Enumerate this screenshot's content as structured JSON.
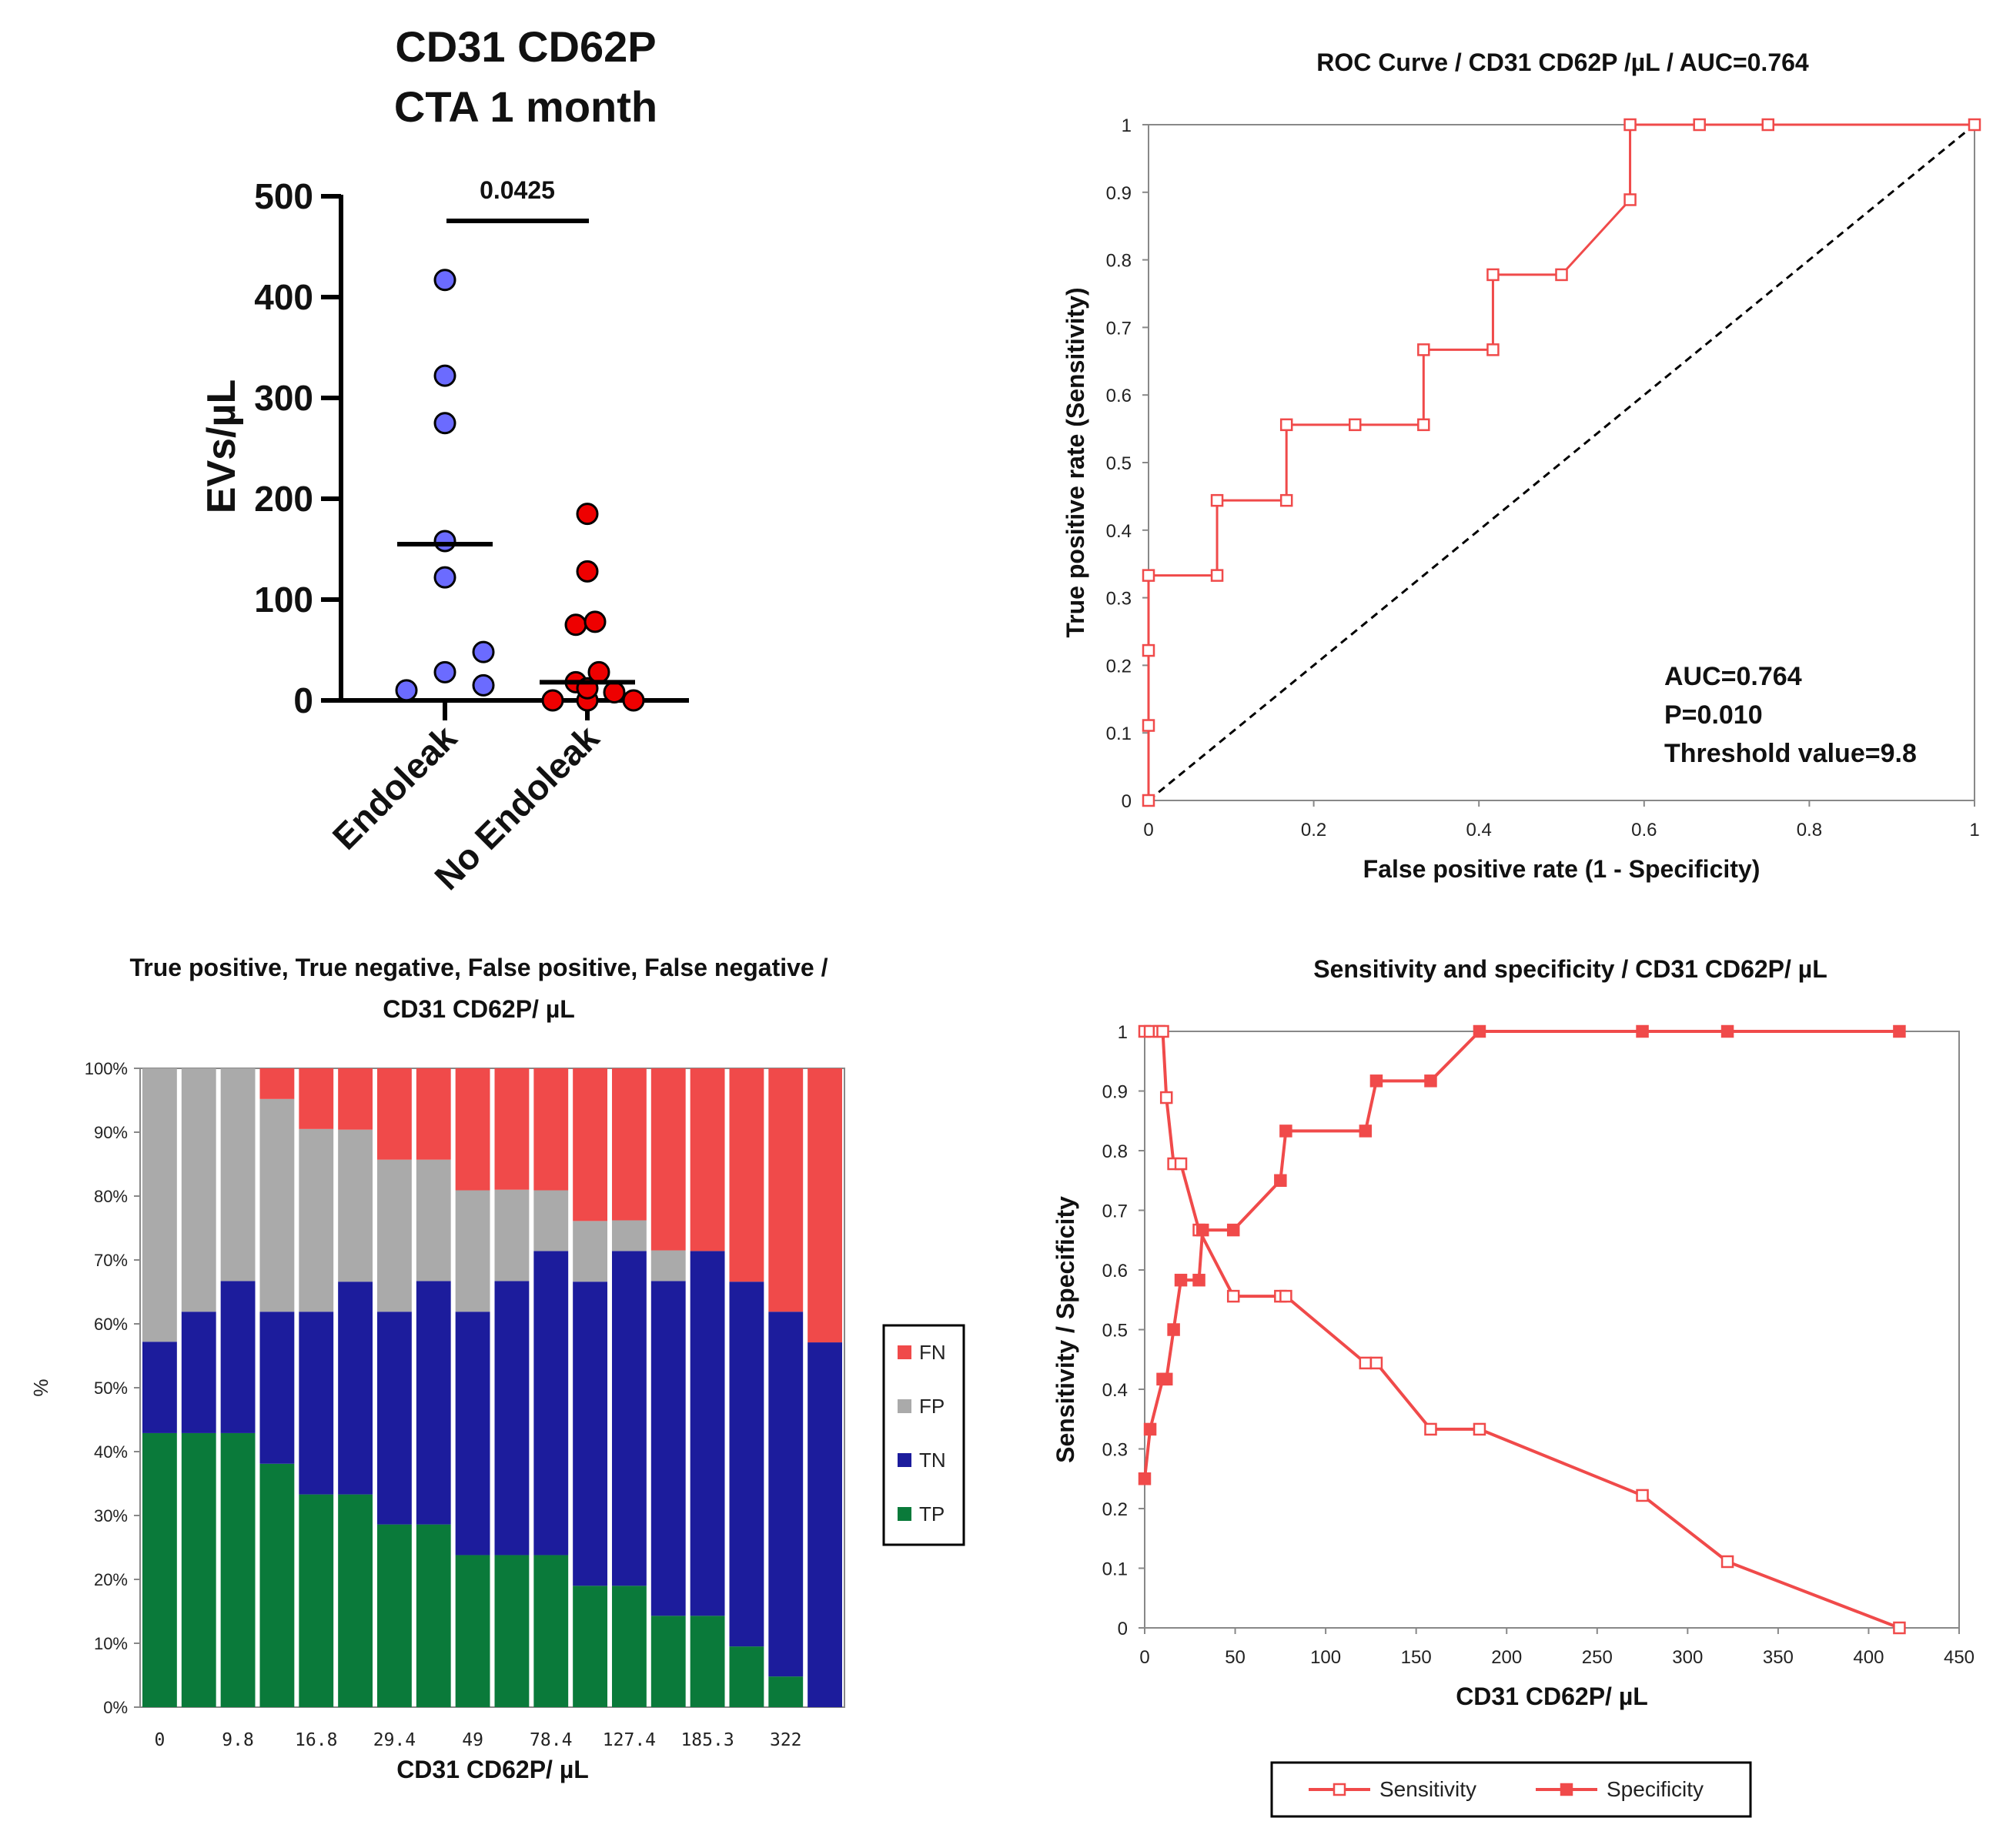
{
  "chart_data": [
    {
      "id": "scatter",
      "type": "scatter",
      "title_lines": [
        "CD31 CD62P",
        "CTA 1 month"
      ],
      "ylabel": "EVs/µL",
      "ylim": [
        0,
        500
      ],
      "yticks": [
        0,
        100,
        200,
        300,
        400,
        500
      ],
      "categories": [
        "Endoleak",
        "No Endoleak"
      ],
      "colors": [
        "#6b6bff",
        "#ee0000"
      ],
      "points": [
        [
          10,
          28,
          15,
          48,
          122,
          158,
          275,
          322,
          417
        ],
        [
          0,
          18,
          0,
          12,
          28,
          8,
          0,
          75,
          78,
          128,
          185
        ]
      ],
      "medians": [
        155,
        18
      ],
      "significance": "0.0425"
    },
    {
      "id": "roc",
      "type": "line",
      "title": "ROC Curve / CD31 CD62P /µL / AUC=0.764",
      "xlabel": "False positive rate (1 - Specificity)",
      "ylabel": "True positive rate (Sensitivity)",
      "xlim": [
        0,
        1
      ],
      "ylim": [
        0,
        1
      ],
      "xticks": [
        "0",
        "0.2",
        "0.4",
        "0.6",
        "0.8",
        "1"
      ],
      "yticks": [
        "0",
        "0.1",
        "0.2",
        "0.3",
        "0.4",
        "0.5",
        "0.6",
        "0.7",
        "0.8",
        "0.9",
        "1"
      ],
      "series": [
        {
          "name": "ROC",
          "x": [
            0,
            0,
            0,
            0,
            0.083,
            0.083,
            0.167,
            0.167,
            0.25,
            0.333,
            0.333,
            0.417,
            0.417,
            0.5,
            0.583,
            0.583,
            0.667,
            0.75,
            1
          ],
          "y": [
            0,
            0.111,
            0.222,
            0.333,
            0.333,
            0.444,
            0.444,
            0.556,
            0.556,
            0.556,
            0.667,
            0.667,
            0.778,
            0.778,
            0.889,
            1,
            1,
            1,
            1
          ]
        }
      ],
      "annotations": [
        "AUC=0.764",
        "P=0.010",
        "Threshold value=9.8"
      ],
      "color": "#f04a4a"
    },
    {
      "id": "stacked",
      "type": "bar",
      "title_lines": [
        "True positive, True negative, False positive, False negative /",
        "CD31 CD62P/ µL"
      ],
      "xlabel": "CD31 CD62P/ µL",
      "ylabel": "%",
      "yticks": [
        "0%",
        "10%",
        "20%",
        "30%",
        "40%",
        "50%",
        "60%",
        "70%",
        "80%",
        "90%",
        "100%"
      ],
      "xtick_labels": [
        "0",
        "9.8",
        "16.8",
        "29.4",
        "49",
        "78.4",
        "127.4",
        "185.3",
        "322"
      ],
      "series": [
        {
          "name": "TP",
          "color": "#0a7a3a",
          "values": [
            42.9,
            42.9,
            42.9,
            38.1,
            33.3,
            33.3,
            28.6,
            28.6,
            23.8,
            23.8,
            23.8,
            19.0,
            19.0,
            14.3,
            14.3,
            9.5,
            4.8,
            0
          ]
        },
        {
          "name": "TN",
          "color": "#1c1c9c",
          "values": [
            14.3,
            19.0,
            23.8,
            23.8,
            28.6,
            33.3,
            33.3,
            38.1,
            38.1,
            42.9,
            47.6,
            47.6,
            52.4,
            52.4,
            57.1,
            57.1,
            57.1,
            57.1
          ]
        },
        {
          "name": "FP",
          "color": "#aaaaaa",
          "values": [
            42.8,
            38.1,
            33.3,
            33.3,
            28.6,
            23.8,
            23.8,
            19.0,
            19.0,
            14.3,
            9.5,
            9.5,
            4.8,
            4.8,
            0,
            0,
            0,
            0
          ]
        },
        {
          "name": "FN",
          "color": "#f04a4a",
          "values": [
            0,
            0,
            0,
            4.8,
            9.5,
            9.6,
            14.3,
            14.3,
            19.1,
            19.0,
            19.1,
            23.9,
            23.8,
            28.5,
            28.6,
            33.4,
            38.1,
            42.9
          ]
        }
      ],
      "legend": [
        "FN",
        "FP",
        "TN",
        "TP"
      ]
    },
    {
      "id": "sensspec",
      "type": "line",
      "title": "Sensitivity and specificity / CD31 CD62P/ µL",
      "xlabel": "CD31 CD62P/ µL",
      "ylabel": "Sensitivity / Specificity",
      "xlim": [
        0,
        450
      ],
      "ylim": [
        0,
        1
      ],
      "xticks": [
        "0",
        "50",
        "100",
        "150",
        "200",
        "250",
        "300",
        "350",
        "400",
        "450"
      ],
      "yticks": [
        "0",
        "0.1",
        "0.2",
        "0.3",
        "0.4",
        "0.5",
        "0.6",
        "0.7",
        "0.8",
        "0.9",
        "1"
      ],
      "series": [
        {
          "name": "Sensitivity",
          "x": [
            0,
            3,
            8,
            10,
            12,
            16,
            20,
            30,
            49,
            75,
            78,
            122,
            128,
            158,
            185,
            275,
            322,
            417
          ],
          "y": [
            1,
            1,
            1,
            1,
            0.889,
            0.778,
            0.778,
            0.667,
            0.556,
            0.556,
            0.556,
            0.444,
            0.444,
            0.333,
            0.333,
            0.222,
            0.111,
            0
          ]
        },
        {
          "name": "Specificity",
          "x": [
            0,
            3,
            10,
            12,
            16,
            20,
            30,
            32,
            49,
            75,
            78,
            122,
            128,
            158,
            185,
            275,
            322,
            417
          ],
          "y": [
            0.25,
            0.333,
            0.417,
            0.417,
            0.5,
            0.583,
            0.583,
            0.667,
            0.667,
            0.75,
            0.833,
            0.833,
            0.917,
            0.917,
            1,
            1,
            1,
            1
          ]
        }
      ],
      "legend": [
        "Sensitivity",
        "Specificity"
      ],
      "color": "#f04a4a"
    }
  ]
}
